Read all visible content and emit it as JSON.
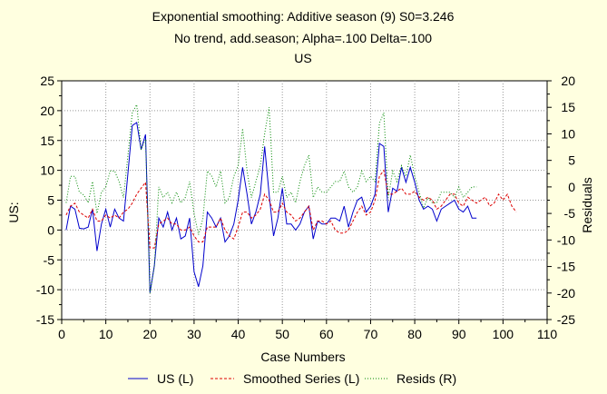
{
  "chart_data": {
    "type": "line",
    "title": [
      "Exponential smoothing: Additive season (9) S0=3.246",
      "No trend, add.season; Alpha=.100  Delta=.100",
      "US"
    ],
    "xlabel": "Case Numbers",
    "ylabel": "US:",
    "y2label": "Residuals",
    "xlim": [
      0,
      110
    ],
    "ylim": [
      -15,
      25
    ],
    "y2lim": [
      -25,
      20
    ],
    "xticks": [
      "0",
      "10",
      "20",
      "30",
      "40",
      "50",
      "60",
      "70",
      "80",
      "90",
      "100",
      "110"
    ],
    "yticks": [
      "-15",
      "-10",
      "-5",
      "0",
      "5",
      "10",
      "15",
      "20",
      "25"
    ],
    "y2ticks": [
      "-25",
      "-20",
      "-15",
      "-10",
      "-5",
      "0",
      "5",
      "10",
      "15",
      "20"
    ],
    "grid": true,
    "legend_position": "bottom",
    "series": [
      {
        "name": "US (L)",
        "axis": "left",
        "color": "#0000cc",
        "style": "solid",
        "x": [
          1,
          2,
          3,
          4,
          5,
          6,
          7,
          8,
          9,
          10,
          11,
          12,
          13,
          14,
          15,
          16,
          17,
          18,
          19,
          20,
          21,
          22,
          23,
          24,
          25,
          26,
          27,
          28,
          29,
          30,
          31,
          32,
          33,
          34,
          35,
          36,
          37,
          38,
          39,
          40,
          41,
          42,
          43,
          44,
          45,
          46,
          47,
          48,
          49,
          50,
          51,
          52,
          53,
          54,
          55,
          56,
          57,
          58,
          59,
          60,
          61,
          62,
          63,
          64,
          65,
          66,
          67,
          68,
          69,
          70,
          71,
          72,
          73,
          74,
          75,
          76,
          77,
          78,
          79,
          80,
          81,
          82,
          83,
          84,
          85,
          86,
          87,
          88,
          89,
          90,
          91,
          92,
          93,
          94
        ],
        "values": [
          0,
          4,
          3.5,
          0.3,
          0.2,
          0.5,
          3.5,
          -3.5,
          1,
          3.5,
          0.5,
          3.5,
          2,
          1.5,
          9.5,
          17.5,
          18,
          13.5,
          16,
          -10.5,
          -6,
          2,
          0.5,
          3,
          0,
          2,
          -1.5,
          -1,
          2,
          -7,
          -9.5,
          -6,
          3,
          2,
          0.5,
          2,
          -2,
          -1,
          1,
          5,
          10.5,
          6,
          1,
          3,
          6,
          14,
          6,
          -1,
          2,
          7,
          1,
          1,
          0,
          1,
          3,
          4,
          -1.5,
          1.5,
          1,
          1,
          2,
          2,
          1.5,
          4,
          0.5,
          3,
          5,
          5.5,
          3,
          4,
          6,
          14.5,
          14,
          3,
          7,
          6.5,
          10.5,
          8,
          10.5,
          8,
          5,
          3.5,
          4,
          3.5,
          1.5,
          3.5,
          4,
          4.5,
          5,
          3.5,
          3,
          4,
          2,
          2
        ]
      },
      {
        "name": "Smoothed Series (L)",
        "axis": "left",
        "color": "#dd0000",
        "style": "dashed",
        "x": [
          1,
          2,
          3,
          4,
          5,
          6,
          7,
          8,
          9,
          10,
          11,
          12,
          13,
          14,
          15,
          16,
          17,
          18,
          19,
          20,
          21,
          22,
          23,
          24,
          25,
          26,
          27,
          28,
          29,
          30,
          31,
          32,
          33,
          34,
          35,
          36,
          37,
          38,
          39,
          40,
          41,
          42,
          43,
          44,
          45,
          46,
          47,
          48,
          49,
          50,
          51,
          52,
          53,
          54,
          55,
          56,
          57,
          58,
          59,
          60,
          61,
          62,
          63,
          64,
          65,
          66,
          67,
          68,
          69,
          70,
          71,
          72,
          73,
          74,
          75,
          76,
          77,
          78,
          79,
          80,
          81,
          82,
          83,
          84,
          85,
          86,
          87,
          88,
          89,
          90,
          91,
          92,
          93,
          94,
          95,
          96,
          97,
          98,
          99,
          100,
          101,
          102,
          103
        ],
        "values": [
          2.5,
          4,
          4.5,
          3,
          2.5,
          2,
          3.5,
          1.5,
          1.5,
          2.5,
          2,
          2.5,
          2,
          3,
          3.5,
          4.5,
          6,
          7,
          8,
          -3,
          -3,
          1,
          1.5,
          2,
          1,
          1,
          0,
          0,
          0.5,
          -1,
          -2,
          -2,
          0.5,
          0.5,
          0.5,
          2,
          0,
          -1,
          -1.5,
          0.5,
          3,
          3,
          2,
          2.5,
          3.5,
          6,
          5,
          3,
          3,
          4.5,
          3,
          2.5,
          1.5,
          2,
          3,
          4,
          0,
          1.5,
          1.5,
          1,
          1.5,
          0,
          -0.5,
          -0.5,
          0,
          1.5,
          3,
          4,
          2.5,
          3,
          5,
          9,
          10,
          6,
          6,
          6.5,
          7,
          6,
          6,
          6.5,
          5.5,
          5,
          5.5,
          5,
          3.5,
          4,
          5,
          6,
          6,
          4.5,
          4,
          5.5,
          5,
          4.5,
          5,
          5.5,
          4,
          4.5,
          6,
          5,
          6,
          4,
          3
        ]
      },
      {
        "name": "Resids (R)",
        "axis": "right",
        "color": "#008800",
        "style": "dotted",
        "x": [
          1,
          2,
          3,
          4,
          5,
          6,
          7,
          8,
          9,
          10,
          11,
          12,
          13,
          14,
          15,
          16,
          17,
          18,
          19,
          20,
          21,
          22,
          23,
          24,
          25,
          26,
          27,
          28,
          29,
          30,
          31,
          32,
          33,
          34,
          35,
          36,
          37,
          38,
          39,
          40,
          41,
          42,
          43,
          44,
          45,
          46,
          47,
          48,
          49,
          50,
          51,
          52,
          53,
          54,
          55,
          56,
          57,
          58,
          59,
          60,
          61,
          62,
          63,
          64,
          65,
          66,
          67,
          68,
          69,
          70,
          71,
          72,
          73,
          74,
          75,
          76,
          77,
          78,
          79,
          80,
          81,
          82,
          83,
          84,
          85,
          86,
          87,
          88,
          89,
          90,
          91,
          92,
          93,
          94
        ],
        "values": [
          -3,
          2,
          2,
          -1,
          -1.5,
          -3,
          1,
          -5,
          -1,
          0,
          3,
          3,
          1,
          -2,
          6,
          14,
          15.5,
          7,
          9,
          -20,
          -15,
          0,
          -2,
          -1,
          -3,
          -1,
          -3,
          -2,
          1,
          -5,
          -9,
          -6,
          3,
          2,
          0,
          3,
          -3,
          -2,
          2,
          4,
          11,
          3,
          -2,
          1,
          4,
          10,
          15,
          -1,
          -1,
          2,
          -2,
          -1,
          -3,
          1,
          4,
          6,
          -2,
          0,
          -1,
          -1,
          0,
          1,
          1,
          3,
          0,
          -1,
          0,
          3,
          1,
          2,
          1,
          12,
          14,
          -2,
          3,
          1,
          4,
          2,
          6,
          2,
          -1,
          -4,
          -2,
          -3,
          -3,
          -1,
          -1,
          -1,
          -2,
          0,
          -2,
          -1,
          0,
          0
        ]
      }
    ]
  }
}
